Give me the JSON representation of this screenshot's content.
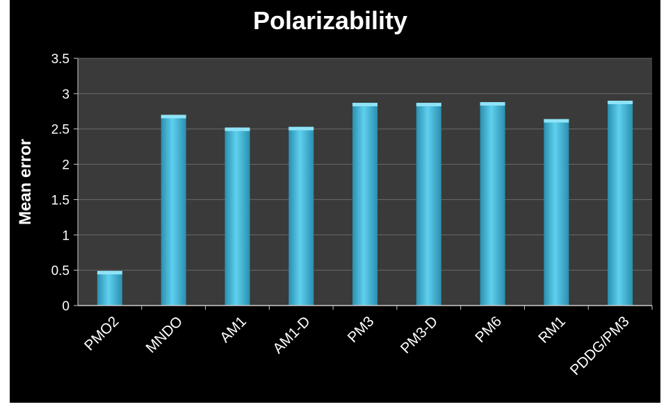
{
  "chart_data": {
    "type": "bar",
    "title": "Polarizability",
    "xlabel": "",
    "ylabel": "Mean error",
    "categories": [
      "PMO2",
      "MNDO",
      "AM1",
      "AM1-D",
      "PM3",
      "PM3-D",
      "PM6",
      "RM1",
      "PDDG/PM3"
    ],
    "values": [
      0.49,
      2.7,
      2.52,
      2.53,
      2.87,
      2.87,
      2.88,
      2.64,
      2.9
    ],
    "ylim": [
      0,
      3.5
    ],
    "yticks": [
      "0",
      "0.5",
      "1",
      "1.5",
      "2",
      "2.5",
      "3",
      "3.5"
    ],
    "grid": true,
    "legend": "none",
    "colors": {
      "background": "#000000",
      "plot_area": "#3a3a3a",
      "gridline": "#6a6a6a",
      "bar": "#3cb8dc",
      "text": "#ffffff"
    }
  }
}
